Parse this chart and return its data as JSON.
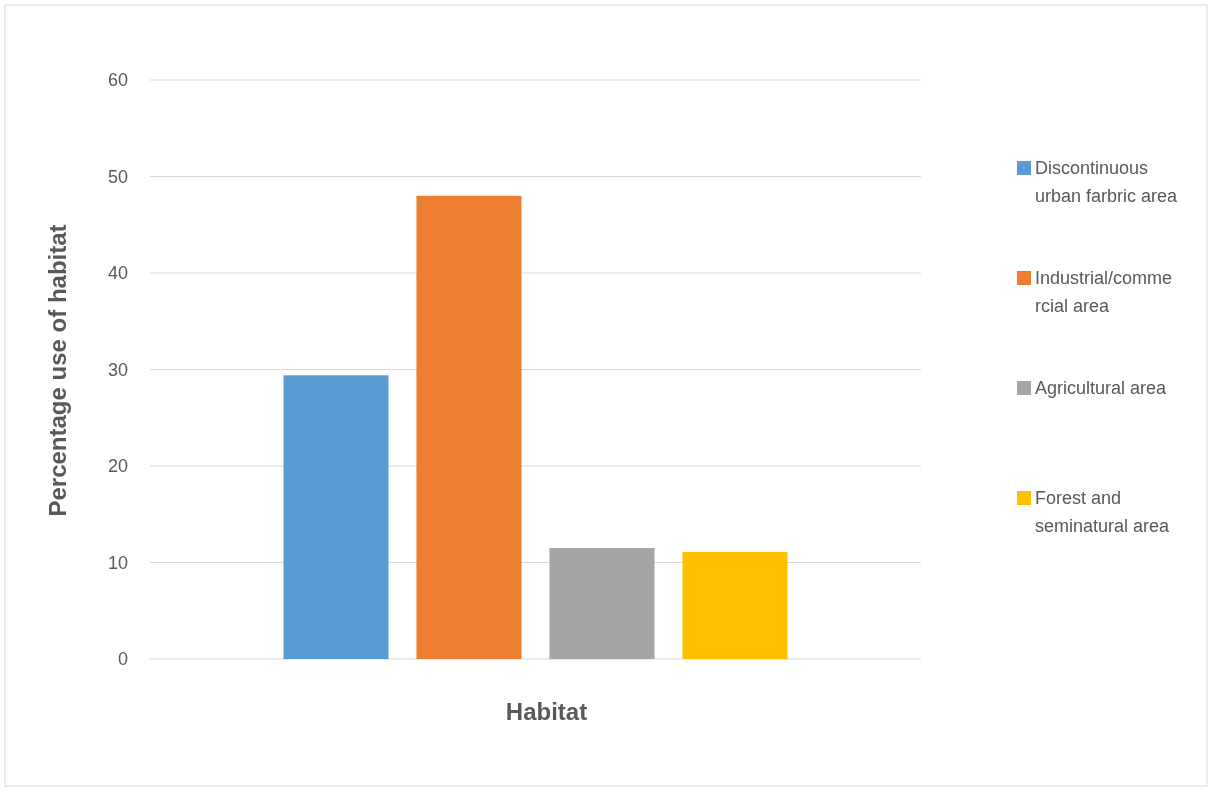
{
  "chart_data": {
    "type": "bar",
    "xlabel": "Habitat",
    "ylabel": "Percentage use of habitat",
    "categories": [
      null
    ],
    "series": [
      {
        "name": "Discontinuous urban farbric area",
        "color": "#5b9bd5",
        "values": [
          29.4
        ]
      },
      {
        "name": "Industrial/commercial area",
        "color": "#ed7d31",
        "values": [
          48
        ]
      },
      {
        "name": "Agricultural area",
        "color": "#a5a5a5",
        "values": [
          11.5
        ]
      },
      {
        "name": "Forest and seminatural area",
        "color": "#ffc000",
        "values": [
          11.1
        ]
      }
    ],
    "ylim": [
      0,
      60
    ],
    "yticks": [
      0,
      10,
      20,
      30,
      40,
      50,
      60
    ],
    "grid": "y",
    "legend": "right"
  }
}
